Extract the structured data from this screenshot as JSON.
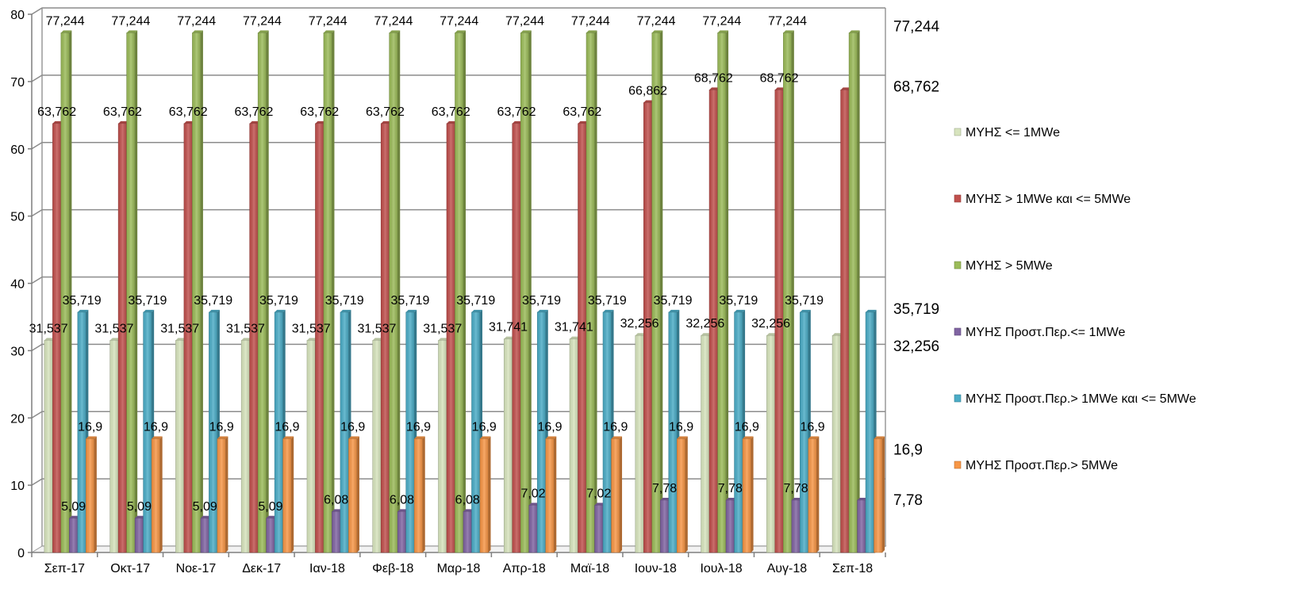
{
  "chart_data": {
    "type": "bar",
    "title": "",
    "xlabel": "",
    "ylabel": "",
    "ylim": [
      0,
      80
    ],
    "y_ticks": [
      "0",
      "10",
      "20",
      "30",
      "40",
      "50",
      "60",
      "70",
      "80"
    ],
    "grid": true,
    "legend_position": "right",
    "categories": [
      "Σεπ-17",
      "Οκτ-17",
      "Νοε-17",
      "Δεκ-17",
      "Ιαν-18",
      "Φεβ-18",
      "Μαρ-18",
      "Απρ-18",
      "Μαϊ-18",
      "Ιουν-18",
      "Ιουλ-18",
      "Αυγ-18",
      "Σεπ-18"
    ],
    "series": [
      {
        "name": "ΜΥΗΣ <= 1MWe",
        "color": "#d7e4bd",
        "values": [
          31.537,
          31.537,
          31.537,
          31.537,
          31.537,
          31.537,
          31.537,
          31.741,
          31.741,
          32.256,
          32.256,
          32.256,
          32.256
        ],
        "labels": [
          "31,537",
          "31,537",
          "31,537",
          "31,537",
          "31,537",
          "31,537",
          "31,537",
          "31,741",
          "31,741",
          "32,256",
          "32,256",
          "32,256",
          "32,256"
        ]
      },
      {
        "name": "ΜΥΗΣ > 1MWe και <= 5MWe",
        "color": "#c0504d",
        "values": [
          63.762,
          63.762,
          63.762,
          63.762,
          63.762,
          63.762,
          63.762,
          63.762,
          63.762,
          66.862,
          68.762,
          68.762,
          68.762
        ],
        "labels": [
          "63,762",
          "63,762",
          "63,762",
          "63,762",
          "63,762",
          "63,762",
          "63,762",
          "63,762",
          "63,762",
          "66,862",
          "68,762",
          "68,762",
          "68,762"
        ]
      },
      {
        "name": "ΜΥΗΣ > 5MWe",
        "color": "#9bbb59",
        "values": [
          77.244,
          77.244,
          77.244,
          77.244,
          77.244,
          77.244,
          77.244,
          77.244,
          77.244,
          77.244,
          77.244,
          77.244,
          77.244
        ],
        "labels": [
          "77,244",
          "77,244",
          "77,244",
          "77,244",
          "77,244",
          "77,244",
          "77,244",
          "77,244",
          "77,244",
          "77,244",
          "77,244",
          "77,244",
          "77,244"
        ]
      },
      {
        "name": "ΜΥΗΣ Προστ.Περ.<= 1MWe",
        "color": "#8064a2",
        "values": [
          5.09,
          5.09,
          5.09,
          5.09,
          6.08,
          6.08,
          6.08,
          7.02,
          7.02,
          7.78,
          7.78,
          7.78,
          7.78
        ],
        "labels": [
          "5,09",
          "5,09",
          "5,09",
          "5,09",
          "6,08",
          "6,08",
          "6,08",
          "7,02",
          "7,02",
          "7,78",
          "7,78",
          "7,78",
          "7,78"
        ]
      },
      {
        "name": "ΜΥΗΣ Προστ.Περ.> 1MWe και <= 5MWe",
        "color": "#4bacc6",
        "values": [
          35.719,
          35.719,
          35.719,
          35.719,
          35.719,
          35.719,
          35.719,
          35.719,
          35.719,
          35.719,
          35.719,
          35.719,
          35.719
        ],
        "labels": [
          "35,719",
          "35,719",
          "35,719",
          "35,719",
          "35,719",
          "35,719",
          "35,719",
          "35,719",
          "35,719",
          "35,719",
          "35,719",
          "35,719",
          "35,719"
        ]
      },
      {
        "name": "ΜΥΗΣ Προστ.Περ.> 5MWe",
        "color": "#f79646",
        "values": [
          16.9,
          16.9,
          16.9,
          16.9,
          16.9,
          16.9,
          16.9,
          16.9,
          16.9,
          16.9,
          16.9,
          16.9,
          16.9
        ],
        "labels": [
          "16,9",
          "16,9",
          "16,9",
          "16,9",
          "16,9",
          "16,9",
          "16,9",
          "16,9",
          "16,9",
          "16,9",
          "16,9",
          "16,9",
          "16,9"
        ]
      }
    ]
  }
}
